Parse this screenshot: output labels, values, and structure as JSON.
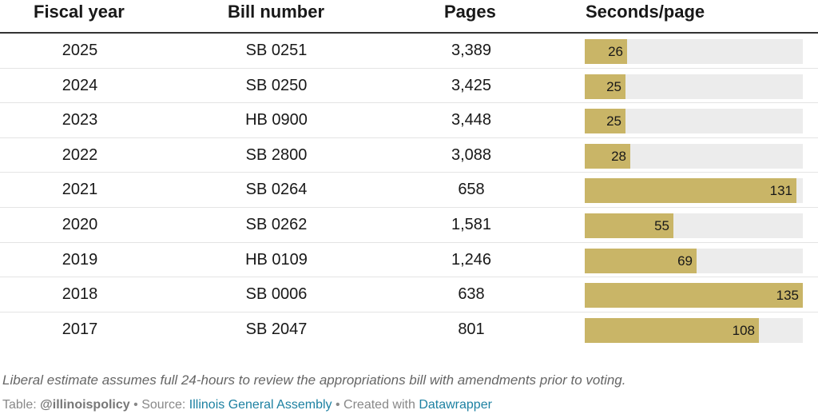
{
  "headers": {
    "fiscal_year": "Fiscal year",
    "bill_number": "Bill number",
    "pages": "Pages",
    "seconds_per_page": "Seconds/page"
  },
  "chart_data": {
    "type": "table",
    "columns": [
      "Fiscal year",
      "Bill number",
      "Pages",
      "Seconds/page"
    ],
    "bar_column": "Seconds/page",
    "bar_max": 135,
    "rows": [
      {
        "year": "2025",
        "bill": "SB 0251",
        "pages": "3,389",
        "seconds": 26
      },
      {
        "year": "2024",
        "bill": "SB 0250",
        "pages": "3,425",
        "seconds": 25
      },
      {
        "year": "2023",
        "bill": "HB 0900",
        "pages": "3,448",
        "seconds": 25
      },
      {
        "year": "2022",
        "bill": "SB 2800",
        "pages": "3,088",
        "seconds": 28
      },
      {
        "year": "2021",
        "bill": "SB 0264",
        "pages": "658",
        "seconds": 131
      },
      {
        "year": "2020",
        "bill": "SB 0262",
        "pages": "1,581",
        "seconds": 55
      },
      {
        "year": "2019",
        "bill": "HB 0109",
        "pages": "1,246",
        "seconds": 69
      },
      {
        "year": "2018",
        "bill": "SB 0006",
        "pages": "638",
        "seconds": 135
      },
      {
        "year": "2017",
        "bill": "SB 2047",
        "pages": "801",
        "seconds": 108
      }
    ]
  },
  "colors": {
    "bar": "#c9b567",
    "track": "#ececec"
  },
  "note": "Liberal estimate assumes full 24-hours to review the appropriations bill with amendments prior to voting.",
  "footer": {
    "table_label": "Table:",
    "table_author": "@illinoispolicy",
    "sep1": "•",
    "source_label": "Source:",
    "source_link": "Illinois General Assembly",
    "sep2": "•",
    "created_label": "Created with",
    "created_link": "Datawrapper"
  }
}
